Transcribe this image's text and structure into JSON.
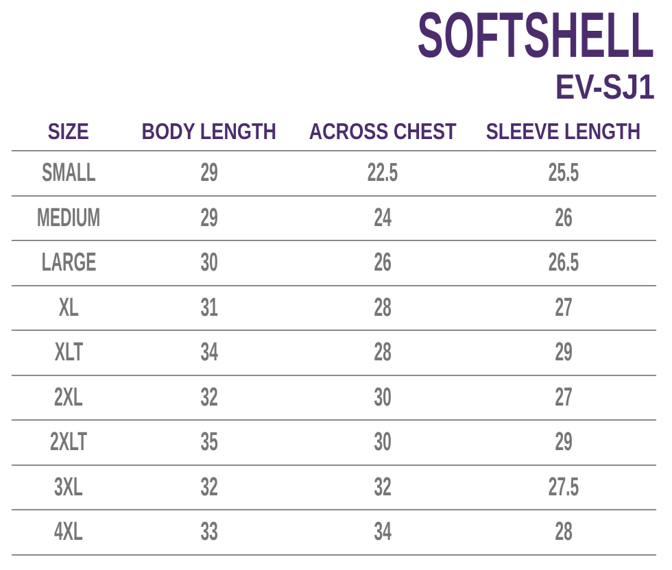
{
  "title": "SOFTSHELL",
  "code": "EV-SJ1",
  "colors": {
    "accent": "#4b2d6e",
    "text": "#767676",
    "rule": "#8a8a8a"
  },
  "headers": [
    "SIZE",
    "BODY LENGTH",
    "ACROSS CHEST",
    "SLEEVE LENGTH"
  ],
  "rows": [
    [
      "SMALL",
      "29",
      "22.5",
      "25.5"
    ],
    [
      "MEDIUM",
      "29",
      "24",
      "26"
    ],
    [
      "LARGE",
      "30",
      "26",
      "26.5"
    ],
    [
      "XL",
      "31",
      "28",
      "27"
    ],
    [
      "XLT",
      "34",
      "28",
      "29"
    ],
    [
      "2XL",
      "32",
      "30",
      "27"
    ],
    [
      "2XLT",
      "35",
      "30",
      "29"
    ],
    [
      "3XL",
      "32",
      "32",
      "27.5"
    ],
    [
      "4XL",
      "33",
      "34",
      "28"
    ]
  ]
}
